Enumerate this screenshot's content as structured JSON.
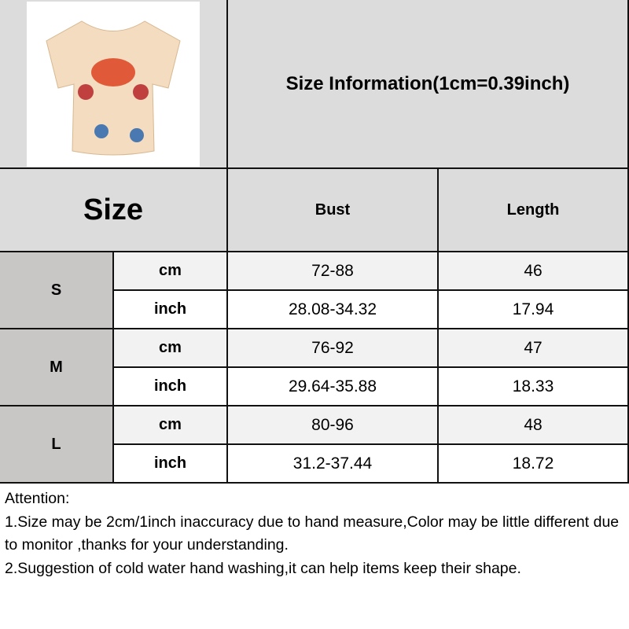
{
  "title": "Size Information(1cm=0.39inch)",
  "table": {
    "size_header": "Size",
    "columns": [
      "Bust",
      "Length"
    ],
    "rows": [
      {
        "size": "S",
        "cm": {
          "unit": "cm",
          "bust": "72-88",
          "length": "46"
        },
        "inch": {
          "unit": "inch",
          "bust": "28.08-34.32",
          "length": "17.94"
        }
      },
      {
        "size": "M",
        "cm": {
          "unit": "cm",
          "bust": "76-92",
          "length": "47"
        },
        "inch": {
          "unit": "inch",
          "bust": "29.64-35.88",
          "length": "18.33"
        }
      },
      {
        "size": "L",
        "cm": {
          "unit": "cm",
          "bust": "80-96",
          "length": "48"
        },
        "inch": {
          "unit": "inch",
          "bust": "31.2-37.44",
          "length": "18.72"
        }
      }
    ]
  },
  "notes": [
    "Attention:",
    "1.Size may be 2cm/1inch inaccuracy due to hand measure,Color may be little different due to monitor ,thanks for your understanding.",
    "2.Suggestion of cold water hand washing,it can help items keep their shape."
  ],
  "colors": {
    "header_bg": "#dcdcdc",
    "size_bg": "#c9c6c6",
    "cm_row_bg": "#f2f2f2",
    "grid": "#111111"
  }
}
